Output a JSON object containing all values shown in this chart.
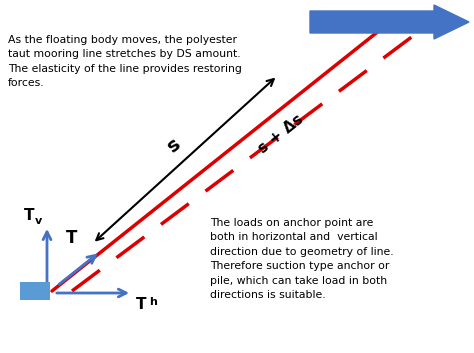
{
  "bg_color": "#ffffff",
  "line_solid_color": "#dd0000",
  "line_dashed_color": "#dd0000",
  "arrow_color": "#4472c4",
  "anchor_color": "#5b9bd5",
  "text_color": "#000000",
  "left_text_lines": [
    "As the floating body moves, the polyester",
    "taut mooring line stretches by DS amount.",
    "The elasticity of the line provides restoring",
    "forces."
  ],
  "right_text_lines": [
    "The loads on anchor point are",
    "both in horizontal and  vertical",
    "direction due to geometry of line.",
    "Therefore suction type anchor or",
    "pile, which can take load in both",
    "directions is suitable."
  ],
  "label_s": "s",
  "label_s_ds": "s + Δs",
  "label_T": "T",
  "label_Tv": "T",
  "label_Th": "T"
}
